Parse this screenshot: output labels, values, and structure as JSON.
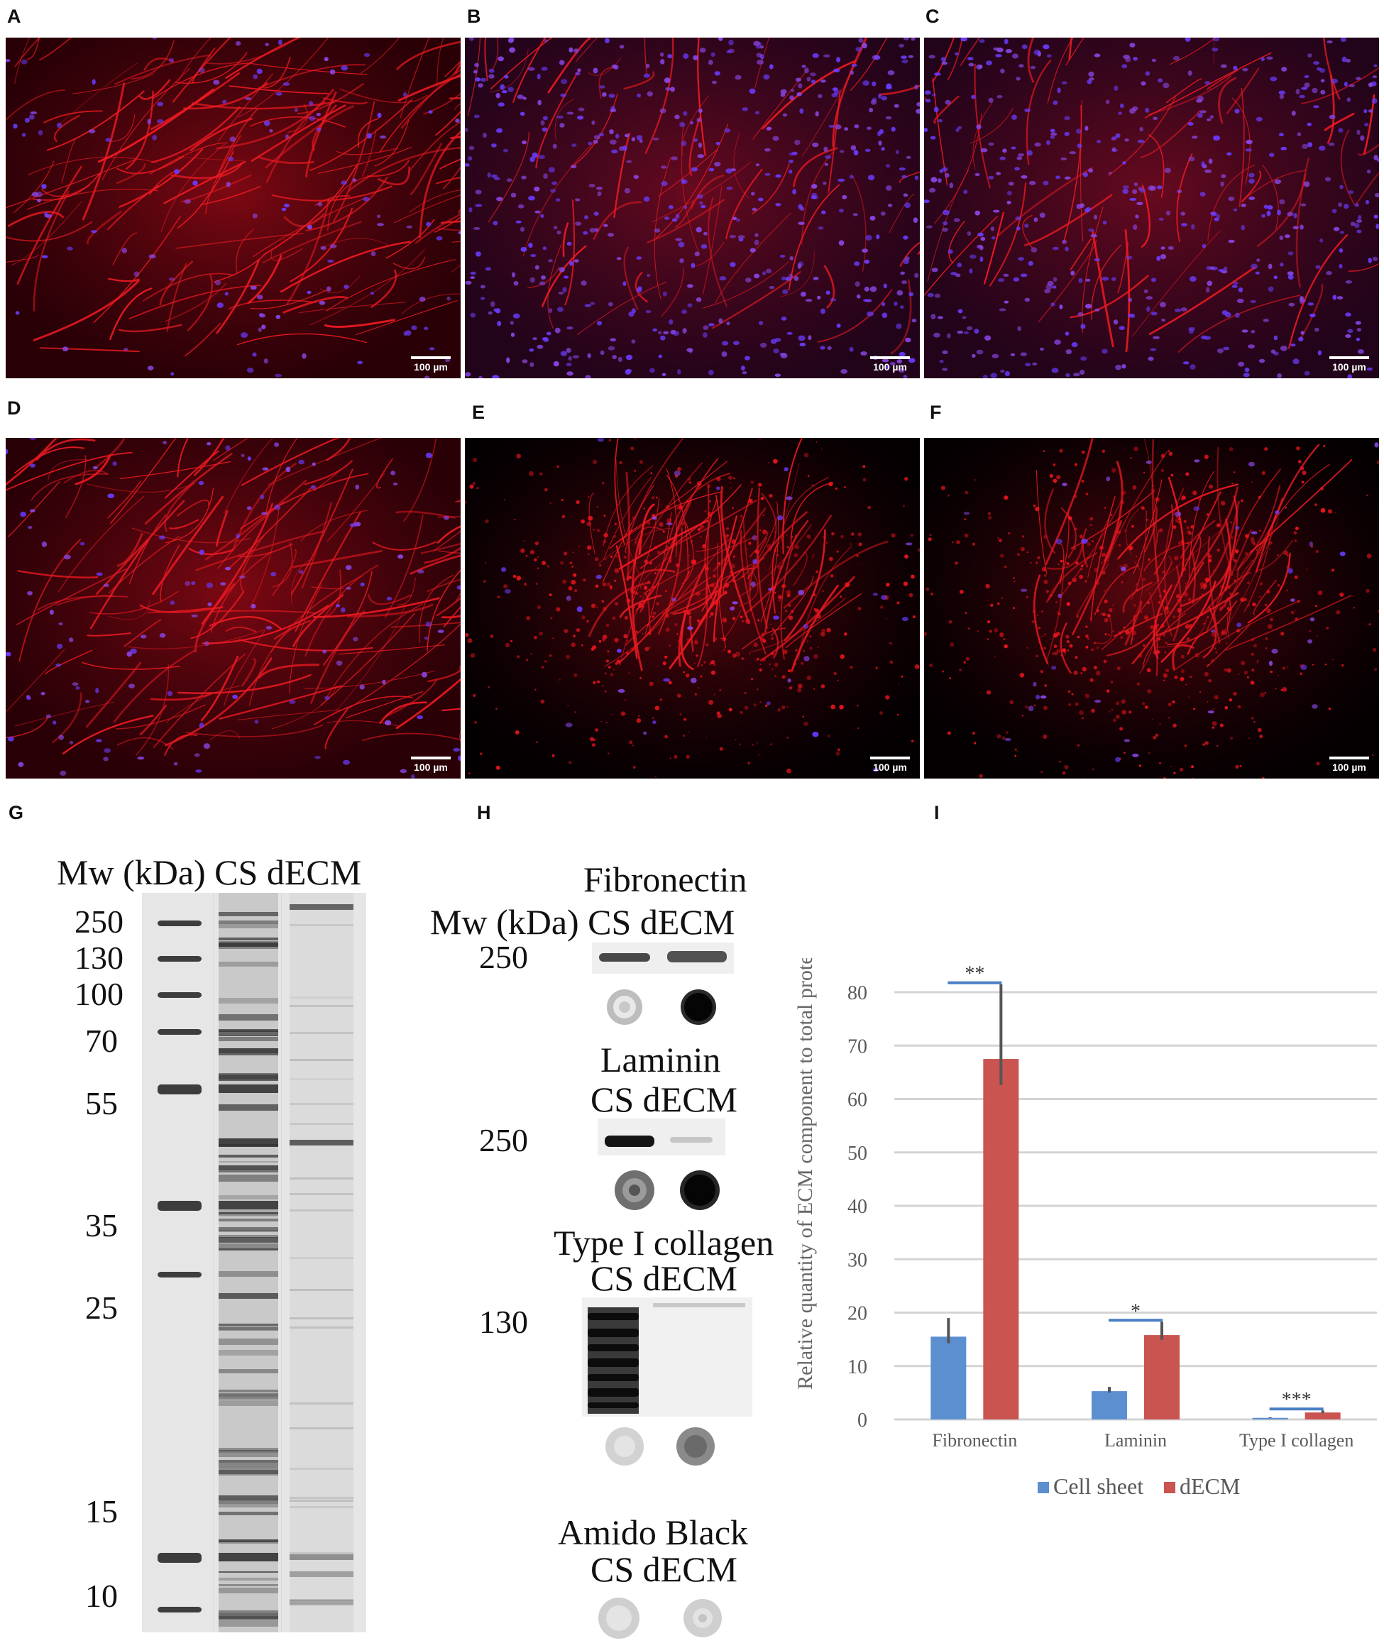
{
  "panels": {
    "A": {
      "letter": "A",
      "scale_bar": "100 µm",
      "stain": "dense fiber network"
    },
    "B": {
      "letter": "B",
      "scale_bar": "100 µm",
      "stain": "nuclei-rich"
    },
    "C": {
      "letter": "C",
      "scale_bar": "100 µm",
      "stain": "nuclei-rich"
    },
    "D": {
      "letter": "D",
      "scale_bar": "100 µm",
      "stain": "dense fiber network"
    },
    "E": {
      "letter": "E",
      "scale_bar": "100 µm",
      "stain": "sparse fibrous"
    },
    "F": {
      "letter": "F",
      "scale_bar": "100 µm",
      "stain": "sparse fibrous"
    },
    "G": {
      "letter": "G"
    },
    "H": {
      "letter": "H"
    },
    "I": {
      "letter": "I"
    }
  },
  "gel": {
    "header": "Mw (kDa) CS dECM",
    "markers": [
      "250",
      "130",
      "100",
      "70",
      "55",
      "35",
      "25",
      "15",
      "10"
    ]
  },
  "blots": {
    "fibronectin": {
      "title": "Fibronectin",
      "header": "Mw (kDa) CS dECM",
      "mw": "250"
    },
    "laminin": {
      "title": "Laminin",
      "lanes": "CS dECM",
      "mw": "250"
    },
    "collagen": {
      "title": "Type I collagen",
      "lanes": "CS dECM",
      "mw": "130"
    },
    "amido": {
      "title": "Amido Black",
      "lanes": "CS dECM"
    }
  },
  "colors": {
    "cell_sheet": "#5b8fd0",
    "decm": "#c95450",
    "sig_line": "#4a7fc4"
  },
  "chart_data": {
    "type": "bar",
    "title": "",
    "xlabel": "",
    "ylabel": "Relative quantity of ECM component to total protein, %",
    "categories": [
      "Fibronectin",
      "Laminin",
      "Type I collagen"
    ],
    "ylim": [
      0,
      80
    ],
    "yticks": [
      "0",
      "10",
      "20",
      "30",
      "40",
      "50",
      "60",
      "70",
      "80"
    ],
    "grid": true,
    "legend_position": "bottom",
    "series": [
      {
        "name": "Cell sheet",
        "values": [
          15.5,
          5.3,
          0.3
        ],
        "errors": [
          3.5,
          0.8,
          0.1
        ]
      },
      {
        "name": "dECM",
        "values": [
          67.5,
          15.8,
          1.3
        ],
        "errors": [
          14,
          2.5,
          0.4
        ]
      }
    ],
    "significance": [
      "**",
      "*",
      "***"
    ]
  }
}
